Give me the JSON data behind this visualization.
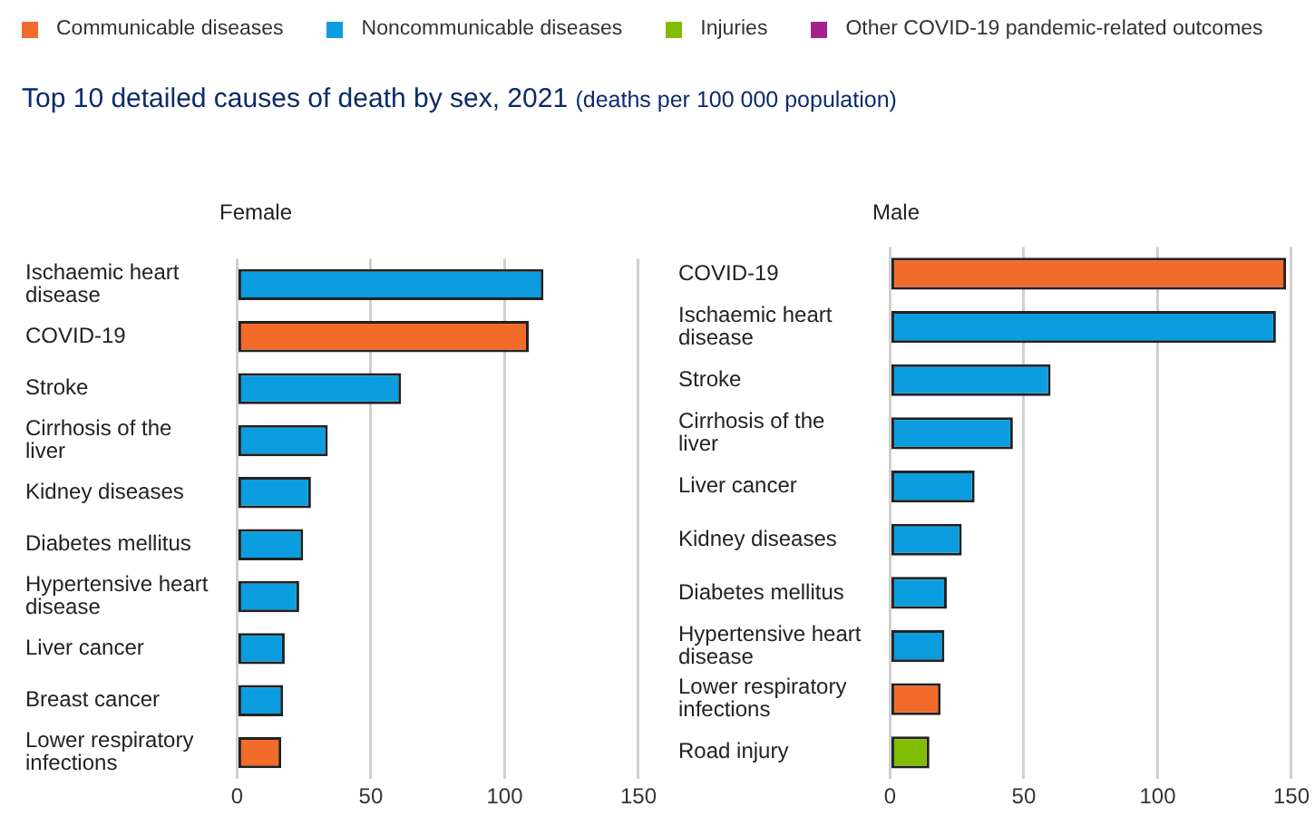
{
  "chart_data": [
    {
      "type": "other",
      "title": "Top 10 detailed causes of death by sex, 2021",
      "subtitle": "(deaths per 100 000 population)"
    },
    {
      "type": "bar",
      "title": "Female",
      "orientation": "horizontal",
      "stacked": true,
      "categories": [
        "Ischaemic heart disease",
        "COVID-19",
        "Stroke",
        "Cirrhosis of the liver",
        "Kidney diseases",
        "Diabetes mellitus",
        "Hypertensive heart disease",
        "Liver cancer",
        "Breast cancer",
        "Lower respiratory infections"
      ],
      "series": [
        {
          "name": "Communicable diseases",
          "color": "#f26b2a",
          "values": [
            null,
            109,
            null,
            null,
            null,
            null,
            null,
            null,
            null,
            16.5
          ]
        },
        {
          "name": "Noncommunicable diseases",
          "color": "#0b9ddf",
          "values": [
            114.5,
            null,
            61.3,
            33.9,
            27.6,
            24.7,
            23.2,
            17.8,
            17.2,
            null
          ]
        },
        {
          "name": "Injuries",
          "color": "#80bc00",
          "values": [
            null,
            null,
            null,
            null,
            null,
            null,
            null,
            null,
            null,
            null
          ]
        },
        {
          "name": "Other COVID-19 pandemic-related outcomes",
          "color": "#a3238e",
          "values": [
            null,
            null,
            null,
            null,
            null,
            null,
            null,
            null,
            null,
            null
          ]
        }
      ],
      "xlim": [
        0,
        150
      ],
      "xticks": [
        0,
        50,
        100,
        150
      ],
      "grid": "x",
      "legend": "top"
    },
    {
      "type": "bar",
      "title": "Male",
      "orientation": "horizontal",
      "stacked": true,
      "categories": [
        "COVID-19",
        "Ischaemic heart disease",
        "Stroke",
        "Cirrhosis of the liver",
        "Liver cancer",
        "Kidney diseases",
        "Diabetes mellitus",
        "Hypertensive heart disease",
        "Lower respiratory infections",
        "Road injury"
      ],
      "series": [
        {
          "color": "#f26b2a",
          "values": [
            148,
            null,
            null,
            null,
            null,
            null,
            null,
            null,
            18.9,
            null
          ]
        },
        {
          "color": "#0b9ddf",
          "values": [
            null,
            144.2,
            60,
            45.9,
            31.6,
            26.8,
            21.2,
            20.3,
            null,
            null
          ]
        },
        {
          "color": "#80bc00",
          "values": [
            null,
            null,
            null,
            null,
            null,
            null,
            null,
            null,
            null,
            14.7
          ]
        }
      ],
      "xlim": [
        0,
        150
      ],
      "xticks": [
        0,
        50,
        100,
        150
      ],
      "grid": "x"
    }
  ]
}
